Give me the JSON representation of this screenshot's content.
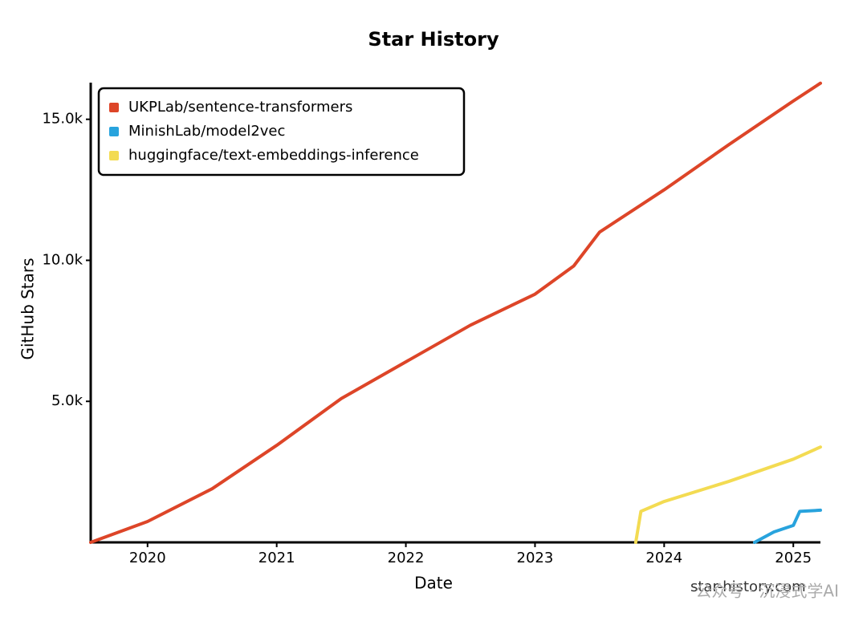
{
  "chart_data": {
    "type": "line",
    "title": "Star History",
    "xlabel": "Date",
    "ylabel": "GitHub Stars",
    "xlim": [
      2019.56,
      2025.21
    ],
    "xticks": [
      2020,
      2021,
      2022,
      2023,
      2024,
      2025
    ],
    "ylim": [
      0,
      16300
    ],
    "yticks": [
      {
        "value": 5000,
        "label": "5.0k"
      },
      {
        "value": 10000,
        "label": "10.0k"
      },
      {
        "value": 15000,
        "label": "15.0k"
      }
    ],
    "legend": "top-left",
    "series": [
      {
        "name": "UKPLab/sentence-transformers",
        "color": "#dd4528",
        "x": [
          2019.56,
          2020,
          2020.5,
          2021,
          2021.5,
          2022,
          2022.5,
          2023,
          2023.3,
          2023.5,
          2024,
          2024.5,
          2025,
          2025.21
        ],
        "values": [
          0,
          740,
          1900,
          3440,
          5100,
          6400,
          7700,
          8800,
          9800,
          11000,
          12500,
          14100,
          15650,
          16280
        ]
      },
      {
        "name": "MinishLab/model2vec",
        "color": "#28a3dd",
        "x": [
          2024.7,
          2024.85,
          2025,
          2025.05,
          2025.21
        ],
        "values": [
          0,
          370,
          600,
          1100,
          1140
        ]
      },
      {
        "name": "huggingface/text-embeddings-inference",
        "color": "#f3db52",
        "x": [
          2023.78,
          2023.82,
          2024,
          2024.5,
          2025,
          2025.21
        ],
        "values": [
          0,
          1100,
          1450,
          2160,
          2950,
          3380
        ]
      }
    ],
    "watermark": "公众号 · 沉浸式学AI",
    "source": "star-history.com"
  }
}
